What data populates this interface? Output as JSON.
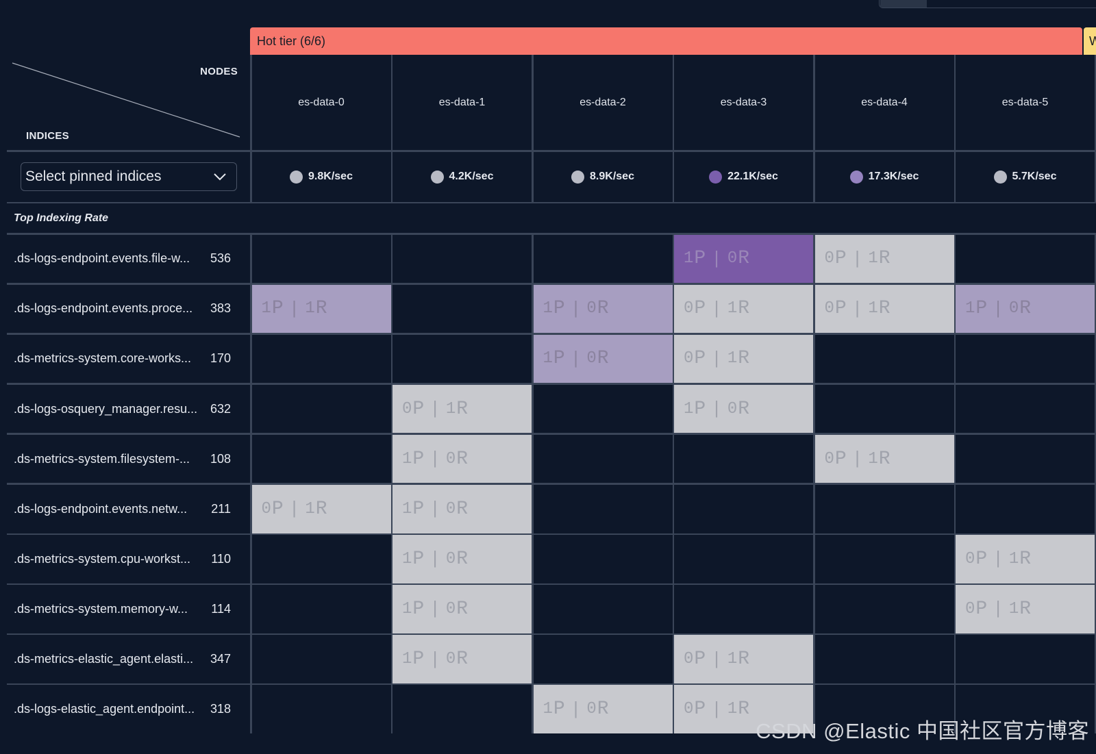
{
  "tier": {
    "hot_label": "Hot tier (6/6)",
    "warm_label_partial": "W"
  },
  "header": {
    "nodes_label": "NODES",
    "indices_label": "INDICES"
  },
  "nodes": [
    {
      "name": "es-data-0",
      "rate": "9.8K/sec",
      "dot_color": "#b8bbc5"
    },
    {
      "name": "es-data-1",
      "rate": "4.2K/sec",
      "dot_color": "#b8bbc5"
    },
    {
      "name": "es-data-2",
      "rate": "8.9K/sec",
      "dot_color": "#b8bbc5"
    },
    {
      "name": "es-data-3",
      "rate": "22.1K/sec",
      "dot_color": "#7b5fad"
    },
    {
      "name": "es-data-4",
      "rate": "17.3K/sec",
      "dot_color": "#9583c0"
    },
    {
      "name": "es-data-5",
      "rate": "5.7K/sec",
      "dot_color": "#b8bbc5"
    }
  ],
  "pinned_select": {
    "label": "Select pinned indices",
    "icon": "chevron-down-icon"
  },
  "section_label": "Top Indexing Rate",
  "colors": {
    "light": "#c8c9ce",
    "lavender": "#a79ec1",
    "purple": "#7a5aa6",
    "hot": "#f6766c",
    "warm": "#f9d97d"
  },
  "rows": [
    {
      "index": ".ds-logs-endpoint.events.file-w...",
      "count": "536",
      "cells": [
        null,
        null,
        null,
        {
          "p": "1",
          "r": "0",
          "tone": "purple"
        },
        {
          "p": "0",
          "r": "1",
          "tone": "light"
        },
        null
      ]
    },
    {
      "index": ".ds-logs-endpoint.events.proce...",
      "count": "383",
      "cells": [
        {
          "p": "1",
          "r": "1",
          "tone": "lavender"
        },
        null,
        {
          "p": "1",
          "r": "0",
          "tone": "lavender"
        },
        {
          "p": "0",
          "r": "1",
          "tone": "light"
        },
        {
          "p": "0",
          "r": "1",
          "tone": "light"
        },
        {
          "p": "1",
          "r": "0",
          "tone": "lavender"
        }
      ]
    },
    {
      "index": ".ds-metrics-system.core-works...",
      "count": "170",
      "cells": [
        null,
        null,
        {
          "p": "1",
          "r": "0",
          "tone": "lavender"
        },
        {
          "p": "0",
          "r": "1",
          "tone": "light"
        },
        null,
        null
      ]
    },
    {
      "index": ".ds-logs-osquery_manager.resu...",
      "count": "632",
      "cells": [
        null,
        {
          "p": "0",
          "r": "1",
          "tone": "light"
        },
        null,
        {
          "p": "1",
          "r": "0",
          "tone": "light"
        },
        null,
        null
      ]
    },
    {
      "index": ".ds-metrics-system.filesystem-...",
      "count": "108",
      "cells": [
        null,
        {
          "p": "1",
          "r": "0",
          "tone": "light"
        },
        null,
        null,
        {
          "p": "0",
          "r": "1",
          "tone": "light"
        },
        null
      ]
    },
    {
      "index": ".ds-logs-endpoint.events.netw...",
      "count": "211",
      "cells": [
        {
          "p": "0",
          "r": "1",
          "tone": "light"
        },
        {
          "p": "1",
          "r": "0",
          "tone": "light"
        },
        null,
        null,
        null,
        null
      ]
    },
    {
      "index": ".ds-metrics-system.cpu-workst...",
      "count": "110",
      "cells": [
        null,
        {
          "p": "1",
          "r": "0",
          "tone": "light"
        },
        null,
        null,
        null,
        {
          "p": "0",
          "r": "1",
          "tone": "light"
        }
      ]
    },
    {
      "index": ".ds-metrics-system.memory-w...",
      "count": "114",
      "cells": [
        null,
        {
          "p": "1",
          "r": "0",
          "tone": "light"
        },
        null,
        null,
        null,
        {
          "p": "0",
          "r": "1",
          "tone": "light"
        }
      ]
    },
    {
      "index": ".ds-metrics-elastic_agent.elasti...",
      "count": "347",
      "cells": [
        null,
        {
          "p": "1",
          "r": "0",
          "tone": "light"
        },
        null,
        {
          "p": "0",
          "r": "1",
          "tone": "light"
        },
        null,
        null
      ]
    },
    {
      "index": ".ds-logs-elastic_agent.endpoint...",
      "count": "318",
      "cells": [
        null,
        null,
        {
          "p": "1",
          "r": "0",
          "tone": "light"
        },
        {
          "p": "0",
          "r": "1",
          "tone": "light"
        },
        null,
        null
      ]
    }
  ],
  "watermark": "CSDN @Elastic 中国社区官方博客"
}
